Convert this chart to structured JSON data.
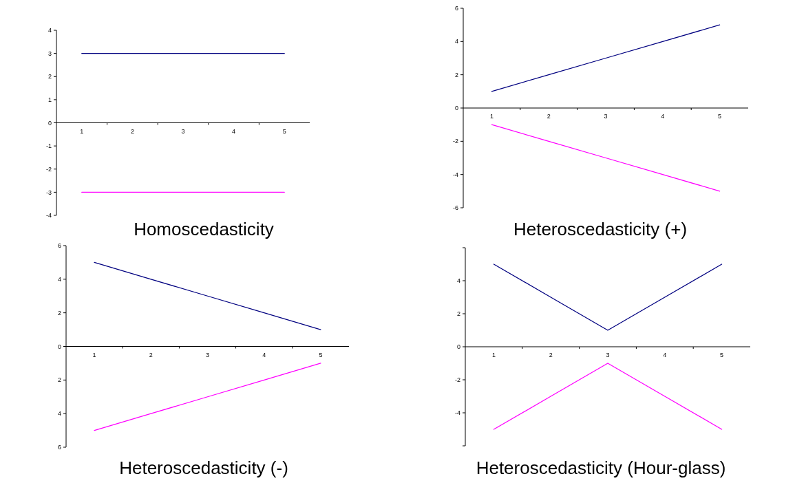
{
  "chart_data": [
    {
      "type": "line",
      "title": "Homoscedasticity",
      "categories": [
        "1",
        "2",
        "3",
        "4",
        "5"
      ],
      "ylim": [
        -4,
        4
      ],
      "yticks": [
        -4,
        -3,
        -2,
        -1,
        0,
        1,
        2,
        3,
        4
      ],
      "series": [
        {
          "color": "#000080",
          "values": [
            3,
            3,
            3,
            3,
            3
          ]
        },
        {
          "color": "#ff00ff",
          "values": [
            -3,
            -3,
            -3,
            -3,
            -3
          ]
        }
      ]
    },
    {
      "type": "line",
      "title": "Heteroscedasticity (+)",
      "categories": [
        "1",
        "2",
        "3",
        "4",
        "5"
      ],
      "ylim": [
        -6,
        6
      ],
      "yticks": [
        -6,
        -4,
        -2,
        0,
        2,
        4,
        6
      ],
      "series": [
        {
          "color": "#000080",
          "values": [
            1,
            2,
            3,
            4,
            5
          ]
        },
        {
          "color": "#ff00ff",
          "values": [
            -1,
            -2,
            -3,
            -4,
            -5
          ]
        }
      ]
    },
    {
      "type": "line",
      "title": "Heteroscedasticity (-)",
      "categories": [
        "1",
        "2",
        "3",
        "4",
        "5"
      ],
      "ylim": [
        -6,
        6
      ],
      "yticks": [
        {
          "value": -6,
          "label": "6"
        },
        {
          "value": -4,
          "label": "4"
        },
        {
          "value": -2,
          "label": "2"
        },
        0,
        2,
        4,
        6
      ],
      "series": [
        {
          "color": "#000080",
          "values": [
            5,
            4,
            3,
            2,
            1
          ]
        },
        {
          "color": "#ff00ff",
          "values": [
            -5,
            -4,
            -3,
            -2,
            -1
          ]
        }
      ]
    },
    {
      "type": "line",
      "title": "Heteroscedasticity (Hour-glass)",
      "categories": [
        "1",
        "2",
        "3",
        "4",
        "5"
      ],
      "ylim": [
        -6,
        6
      ],
      "yticks": [
        {
          "value": -6,
          "label": null
        },
        -4,
        -2,
        0,
        2,
        4,
        {
          "value": 6,
          "label": null
        }
      ],
      "series": [
        {
          "color": "#000080",
          "values": [
            5,
            3,
            1,
            3,
            5
          ]
        },
        {
          "color": "#ff00ff",
          "values": [
            -5,
            -3,
            -1,
            -3,
            -5
          ]
        }
      ]
    }
  ]
}
